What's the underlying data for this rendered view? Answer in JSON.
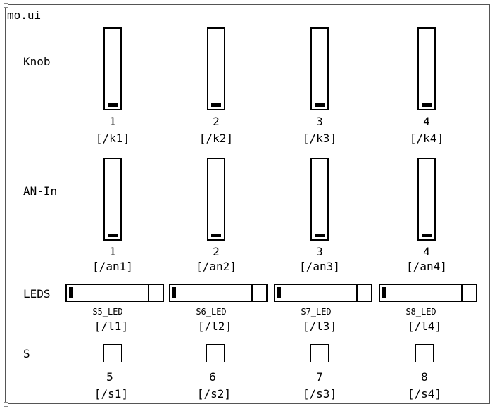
{
  "title": "mo.ui",
  "rows": {
    "knob_label": "Knob",
    "anin_label": "AN-In",
    "leds_label": "LEDS",
    "s_label": "S"
  },
  "knobs": [
    {
      "num": "1",
      "addr": "[/k1]",
      "value": 0
    },
    {
      "num": "2",
      "addr": "[/k2]",
      "value": 0
    },
    {
      "num": "3",
      "addr": "[/k3]",
      "value": 0
    },
    {
      "num": "4",
      "addr": "[/k4]",
      "value": 0
    }
  ],
  "anin": [
    {
      "num": "1",
      "addr": "[/an1]",
      "value": 0
    },
    {
      "num": "2",
      "addr": "[/an2]",
      "value": 0
    },
    {
      "num": "3",
      "addr": "[/an3]",
      "value": 0
    },
    {
      "num": "4",
      "addr": "[/an4]",
      "value": 0
    }
  ],
  "leds": [
    {
      "name": "S5_LED",
      "addr": "[/l1]",
      "value": 0
    },
    {
      "name": "S6_LED",
      "addr": "[/l2]",
      "value": 0
    },
    {
      "name": "S7_LED",
      "addr": "[/l3]",
      "value": 0
    },
    {
      "name": "S8_LED",
      "addr": "[/l4]",
      "value": 0
    }
  ],
  "switches": [
    {
      "num": "5",
      "addr": "[/s1]",
      "checked": false
    },
    {
      "num": "6",
      "addr": "[/s2]",
      "checked": false
    },
    {
      "num": "7",
      "addr": "[/s3]",
      "checked": false
    },
    {
      "num": "8",
      "addr": "[/s4]",
      "checked": false
    }
  ]
}
